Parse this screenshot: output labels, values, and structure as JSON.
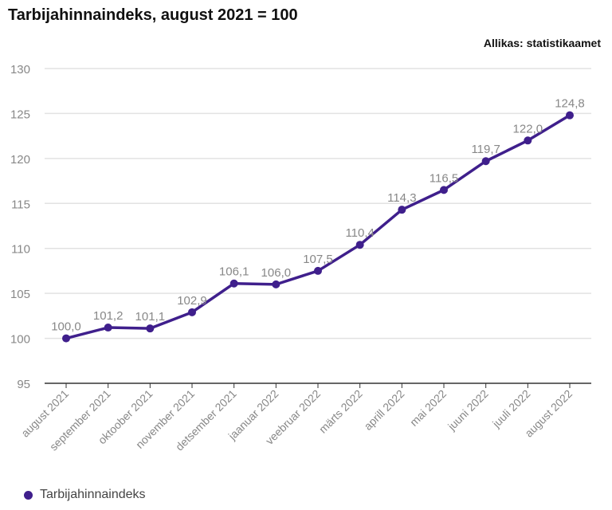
{
  "title": "Tarbijahinnaindeks, august 2021 = 100",
  "source": "Allikas: statistikaamet",
  "colors": {
    "series": "#3f1f8c",
    "grid": "#e2e2e2",
    "axis": "#333333",
    "tick_text": "#888888",
    "data_label": "#888888"
  },
  "chart_data": {
    "type": "line",
    "title": "Tarbijahinnaindeks, august 2021 = 100",
    "xlabel": "",
    "ylabel": "",
    "categories": [
      "august 2021",
      "september 2021",
      "oktoober 2021",
      "november 2021",
      "detsember 2021",
      "jaanuar 2022",
      "veebruar 2022",
      "märts 2022",
      "aprill 2022",
      "mai 2022",
      "juuni 2022",
      "juuli 2022",
      "august 2022"
    ],
    "series": [
      {
        "name": "Tarbijahinnaindeks",
        "values": [
          100.0,
          101.2,
          101.1,
          102.9,
          106.1,
          106.0,
          107.5,
          110.4,
          114.3,
          116.5,
          119.7,
          122.0,
          124.8
        ],
        "labels": [
          "100,0",
          "101,2",
          "101,1",
          "102,9",
          "106,1",
          "106,0",
          "107,5",
          "110,4",
          "114,3",
          "116,5",
          "119,7",
          "122,0",
          "124,8"
        ]
      }
    ],
    "ylim": [
      95,
      130
    ],
    "yticks": [
      95,
      100,
      105,
      110,
      115,
      120,
      125,
      130
    ],
    "grid": true,
    "legend": "bottom-left"
  }
}
